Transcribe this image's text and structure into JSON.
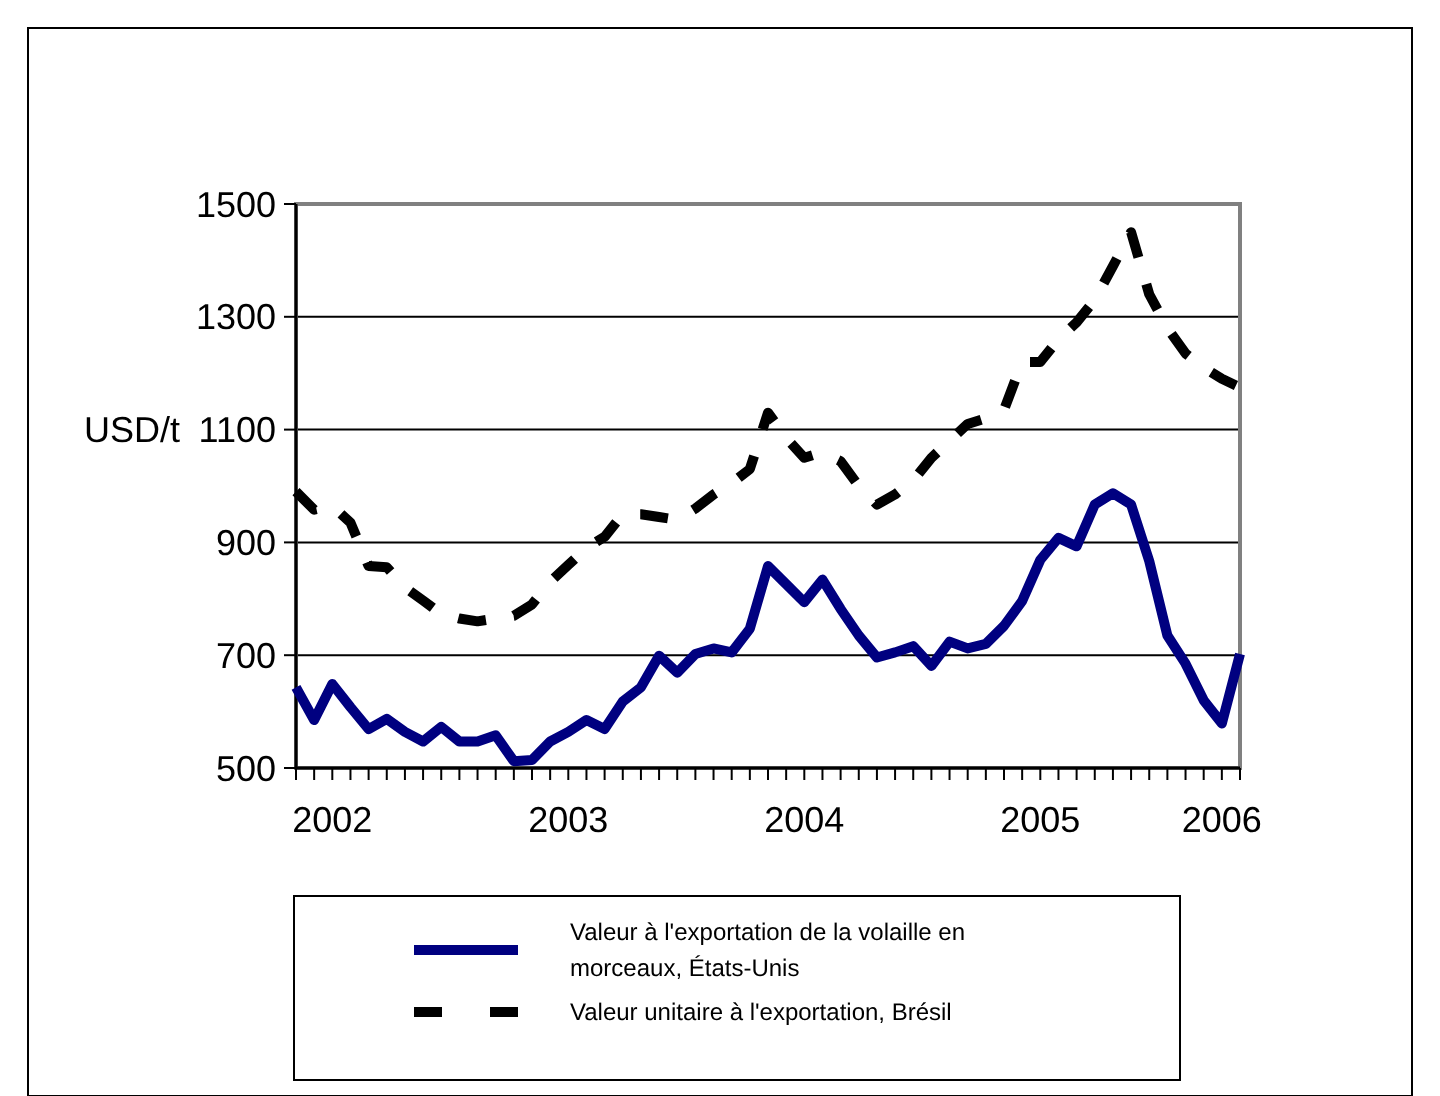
{
  "chart_data": {
    "type": "line",
    "ylabel": "USD/t",
    "categories": [
      null,
      null,
      "2002",
      null,
      null,
      null,
      null,
      null,
      null,
      null,
      null,
      null,
      null,
      null,
      null,
      "2003",
      null,
      null,
      null,
      null,
      null,
      null,
      null,
      null,
      null,
      null,
      null,
      null,
      "2004",
      null,
      null,
      null,
      null,
      null,
      null,
      null,
      null,
      null,
      null,
      null,
      null,
      "2005",
      null,
      null,
      null,
      null,
      null,
      null,
      null,
      null,
      null,
      "2006",
      null
    ],
    "ylim": [
      500,
      1500
    ],
    "yticks": [
      500,
      700,
      900,
      1100,
      1300,
      1500
    ],
    "grid": "y",
    "legend": "bottom",
    "series": [
      {
        "name": "Valeur à l'exportation de la volaille en morceaux, États-Unis",
        "color": "#000080",
        "line_style": "solid",
        "values": [
          643,
          585,
          649,
          608,
          569,
          587,
          564,
          547,
          573,
          547,
          547,
          558,
          512,
          514,
          547,
          564,
          585,
          569,
          618,
          643,
          699,
          669,
          702,
          712,
          705,
          747,
          858,
          826,
          794,
          834,
          782,
          735,
          696,
          705,
          716,
          681,
          724,
          712,
          720,
          752,
          796,
          869,
          908,
          893,
          967,
          987,
          967,
          867,
          735,
          685,
          620,
          579,
          702
        ]
      },
      {
        "name": "Valeur unitaire à l'exportation, Brésil",
        "color": "#000000",
        "line_style": "dashed",
        "values": [
          990,
          958,
          965,
          935,
          858,
          856,
          820,
          797,
          773,
          765,
          760,
          765,
          770,
          790,
          830,
          860,
          890,
          910,
          950,
          950,
          945,
          940,
          960,
          985,
          1005,
          1030,
          1130,
          1085,
          1050,
          1060,
          1044,
          1000,
          967,
          985,
          1010,
          1050,
          1080,
          1110,
          1120,
          1135,
          1220,
          1220,
          1260,
          1290,
          1330,
          1390,
          1450,
          1340,
          1280,
          1235,
          1210,
          1190,
          1175
        ]
      }
    ]
  }
}
